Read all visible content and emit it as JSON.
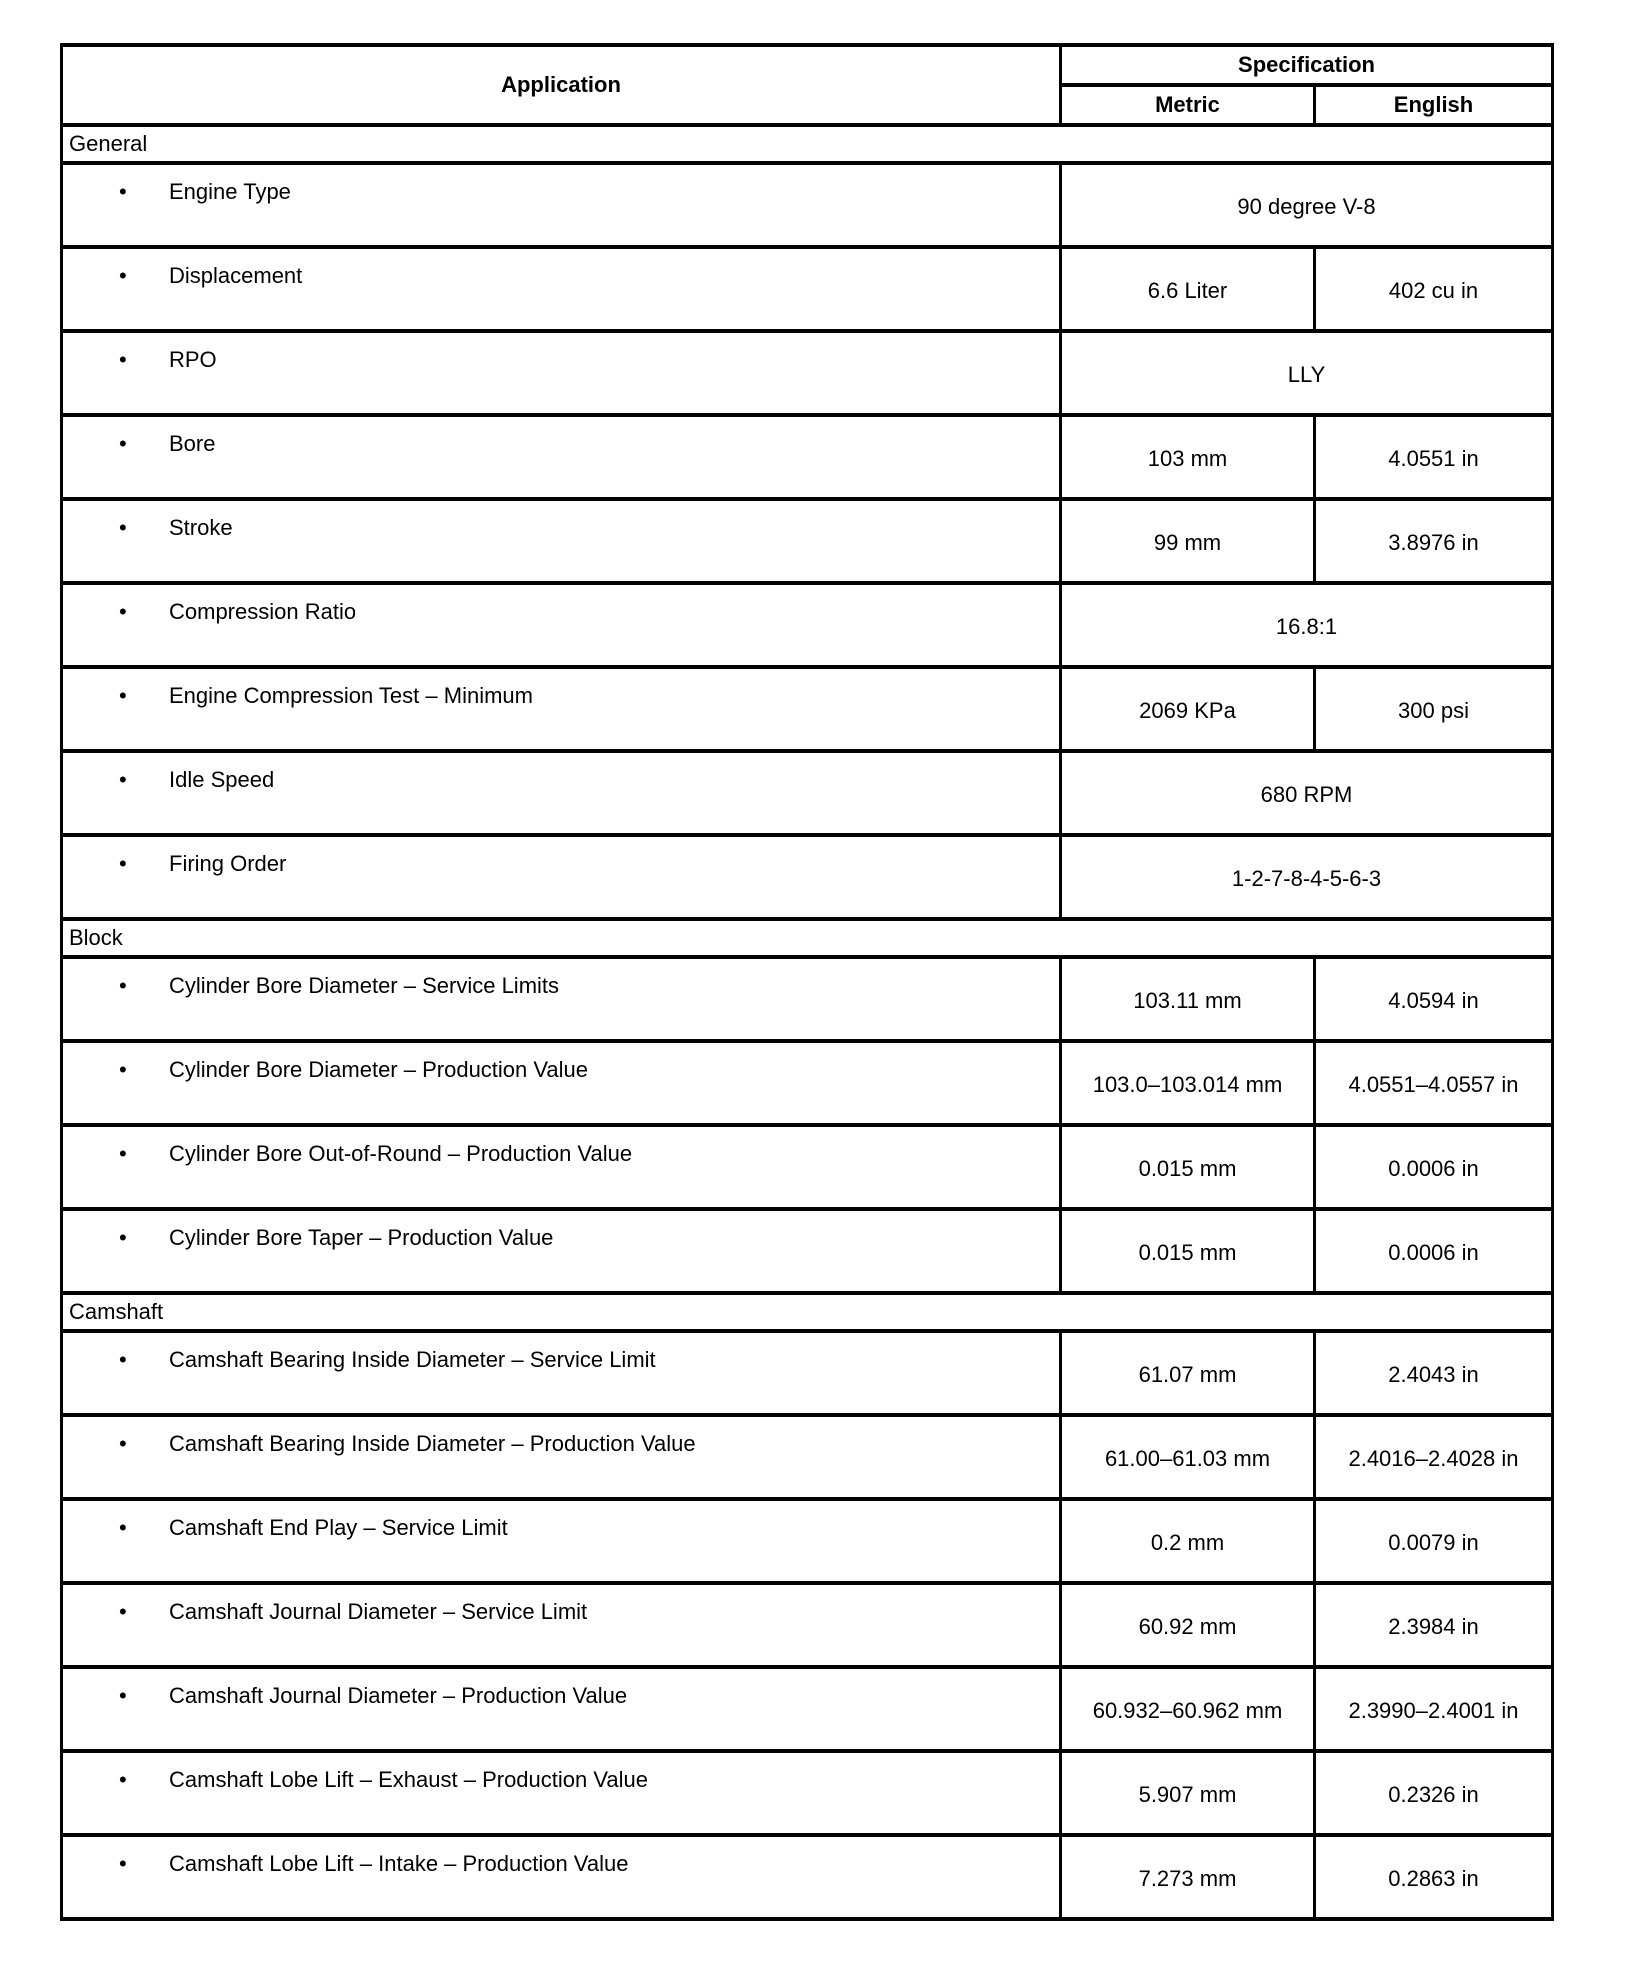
{
  "header": {
    "application": "Application",
    "specification": "Specification",
    "metric": "Metric",
    "english": "English"
  },
  "sections": [
    {
      "title": "General",
      "rows": [
        {
          "label": "Engine Type",
          "value": "90 degree V-8"
        },
        {
          "label": "Displacement",
          "metric": "6.6 Liter",
          "english": "402 cu in"
        },
        {
          "label": "RPO",
          "value": "LLY"
        },
        {
          "label": "Bore",
          "metric": "103 mm",
          "english": "4.0551 in"
        },
        {
          "label": "Stroke",
          "metric": "99 mm",
          "english": "3.8976 in"
        },
        {
          "label": "Compression Ratio",
          "value": "16.8:1"
        },
        {
          "label": "Engine Compression Test – Minimum",
          "metric": "2069 KPa",
          "english": "300 psi"
        },
        {
          "label": "Idle Speed",
          "value": "680 RPM"
        },
        {
          "label": "Firing Order",
          "value": "1-2-7-8-4-5-6-3"
        }
      ]
    },
    {
      "title": "Block",
      "rows": [
        {
          "label": "Cylinder Bore Diameter – Service Limits",
          "metric": "103.11 mm",
          "english": "4.0594 in"
        },
        {
          "label": "Cylinder Bore Diameter – Production Value",
          "metric": "103.0–103.014 mm",
          "english": "4.0551–4.0557 in"
        },
        {
          "label": "Cylinder Bore Out-of-Round – Production Value",
          "metric": "0.015 mm",
          "english": "0.0006 in"
        },
        {
          "label": "Cylinder Bore Taper – Production Value",
          "metric": "0.015 mm",
          "english": "0.0006 in"
        }
      ]
    },
    {
      "title": "Camshaft",
      "rows": [
        {
          "label": "Camshaft Bearing Inside Diameter – Service Limit",
          "metric": "61.07 mm",
          "english": "2.4043 in"
        },
        {
          "label": "Camshaft Bearing Inside Diameter – Production Value",
          "metric": "61.00–61.03 mm",
          "english": "2.4016–2.4028 in"
        },
        {
          "label": "Camshaft End Play – Service Limit",
          "metric": "0.2 mm",
          "english": "0.0079 in"
        },
        {
          "label": "Camshaft Journal Diameter – Service Limit",
          "metric": "60.92 mm",
          "english": "2.3984 in"
        },
        {
          "label": "Camshaft Journal Diameter – Production Value",
          "metric": "60.932–60.962 mm",
          "english": "2.3990–2.4001 in"
        },
        {
          "label": "Camshaft Lobe Lift – Exhaust – Production Value",
          "metric": "5.907 mm",
          "english": "0.2326 in"
        },
        {
          "label": "Camshaft Lobe Lift – Intake – Production Value",
          "metric": "7.273 mm",
          "english": "0.2863 in"
        }
      ]
    }
  ]
}
